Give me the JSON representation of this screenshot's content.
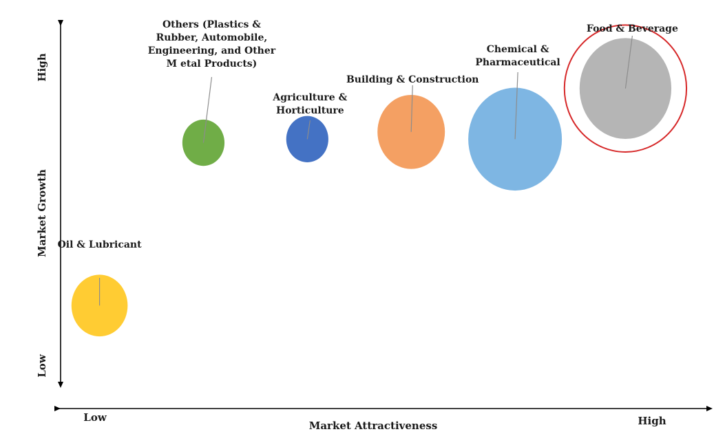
{
  "chart_data": {
    "type": "scatter",
    "subtype": "bubble",
    "title": "",
    "xlabel": "Market Attractiveness",
    "ylabel": "Market Growth",
    "x_low_label": "Low",
    "x_high_label": "High",
    "y_low_label": "Low",
    "y_high_label": "High",
    "grid": false,
    "legend": "none",
    "series": [
      {
        "name": "Oil & Lubricant",
        "label_lines": [
          "Oil & Lubricant"
        ],
        "x": 0.06,
        "y": 0.22,
        "size": 0.6,
        "color": "#FFCC33",
        "highlight": false
      },
      {
        "name": "Others (Plastics & Rubber, Automobile, Engineering, and Other Metal Products)",
        "label_lines": [
          "Others (Plastics &",
          "Rubber, Automobile,",
          "Engineering, and Other",
          "M etal Products)"
        ],
        "x": 0.22,
        "y": 0.67,
        "size": 0.45,
        "color": "#70AD47",
        "highlight": false
      },
      {
        "name": "Agriculture & Horticulture",
        "label_lines": [
          "Agriculture &",
          "Horticulture"
        ],
        "x": 0.38,
        "y": 0.68,
        "size": 0.45,
        "color": "#4472C4",
        "highlight": false
      },
      {
        "name": "Building & Construction",
        "label_lines": [
          "Building & Construction"
        ],
        "x": 0.54,
        "y": 0.7,
        "size": 0.72,
        "color": "#F4A063",
        "highlight": false
      },
      {
        "name": "Chemical & Pharmaceutical",
        "label_lines": [
          "Chemical &",
          "Pharmaceutical"
        ],
        "x": 0.7,
        "y": 0.68,
        "size": 1.0,
        "color": "#7EB6E3",
        "highlight": false
      },
      {
        "name": "Food & Beverage",
        "label_lines": [
          "Food & Beverage"
        ],
        "x": 0.87,
        "y": 0.82,
        "size": 0.98,
        "color": "#B5B5B5",
        "highlight": true,
        "highlight_color": "#D62728"
      }
    ]
  }
}
